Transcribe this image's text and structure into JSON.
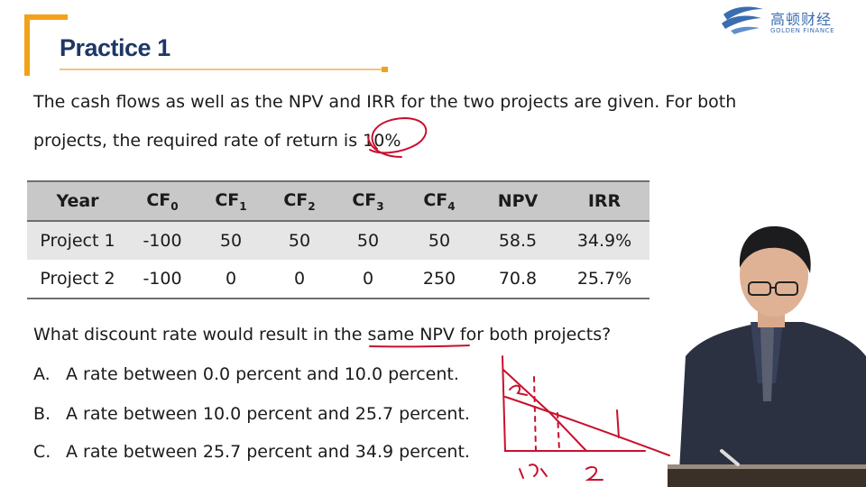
{
  "header": {
    "title": "Practice 1"
  },
  "logo": {
    "cn": "高顿财经",
    "en": "GOLDEN FINANCE"
  },
  "intro": {
    "line1": "The cash flows as well as the NPV and IRR for the two projects are given. For both",
    "line2_prefix": "projects, the required rate of return is ",
    "line2_rate": "10%"
  },
  "table": {
    "headers": [
      {
        "main": "Year",
        "sub": ""
      },
      {
        "main": "CF",
        "sub": "0"
      },
      {
        "main": "CF",
        "sub": "1"
      },
      {
        "main": "CF",
        "sub": "2"
      },
      {
        "main": "CF",
        "sub": "3"
      },
      {
        "main": "CF",
        "sub": "4"
      },
      {
        "main": "NPV",
        "sub": ""
      },
      {
        "main": "IRR",
        "sub": ""
      }
    ],
    "rows": [
      [
        "Project 1",
        "-100",
        "50",
        "50",
        "50",
        "50",
        "58.5",
        "34.9%"
      ],
      [
        "Project 2",
        "-100",
        "0",
        "0",
        "0",
        "250",
        "70.8",
        "25.7%"
      ]
    ]
  },
  "question": {
    "prefix": "What discount rate would result in the ",
    "highlight": "same NPV",
    "suffix": " for both projects?"
  },
  "options": [
    {
      "letter": "A.",
      "text": "A rate between 0.0 percent and 10.0 percent."
    },
    {
      "letter": "B.",
      "text": "A rate between 10.0 percent and 25.7 percent."
    },
    {
      "letter": "C.",
      "text": "A rate between 25.7 percent and 34.9 percent."
    }
  ],
  "colors": {
    "accent": "#f2a21a",
    "title": "#1d3766",
    "ink": "#c8102e",
    "logo": "#3a6db0"
  }
}
